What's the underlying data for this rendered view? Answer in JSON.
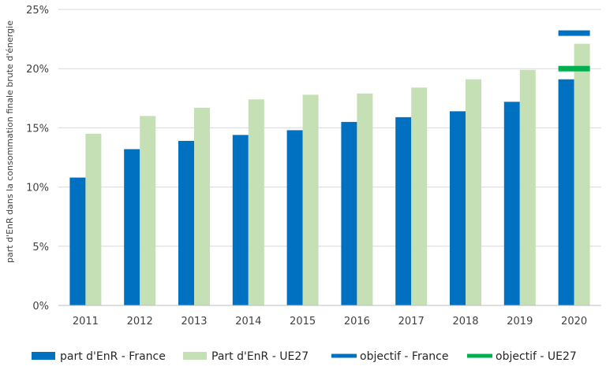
{
  "chart_data": {
    "type": "bar",
    "categories": [
      "2011",
      "2012",
      "2013",
      "2014",
      "2015",
      "2016",
      "2017",
      "2018",
      "2019",
      "2020"
    ],
    "series": [
      {
        "name": "part d'EnR - France",
        "color": "#0070c0",
        "values": [
          10.8,
          13.2,
          13.9,
          14.4,
          14.8,
          15.5,
          15.9,
          16.4,
          17.2,
          19.1
        ]
      },
      {
        "name": "Part d'EnR - UE27",
        "color": "#c5e0b4",
        "values": [
          14.5,
          16.0,
          16.7,
          17.4,
          17.8,
          17.9,
          18.4,
          19.1,
          19.9,
          22.1
        ]
      }
    ],
    "targets": [
      {
        "name": "objectif - France",
        "color": "#0070c0",
        "category": "2020",
        "value": 23
      },
      {
        "name": "objectif - UE27",
        "color": "#00b050",
        "category": "2020",
        "value": 20
      }
    ],
    "ylabel": "part d'EnR dans la consommation finale brute d'énergie",
    "ylim": [
      0,
      25
    ],
    "yticks": [
      0,
      5,
      10,
      15,
      20,
      25
    ],
    "ytick_labels": [
      "0%",
      "5%",
      "10%",
      "15%",
      "20%",
      "25%"
    ],
    "grid": true,
    "legend_position": "bottom"
  }
}
